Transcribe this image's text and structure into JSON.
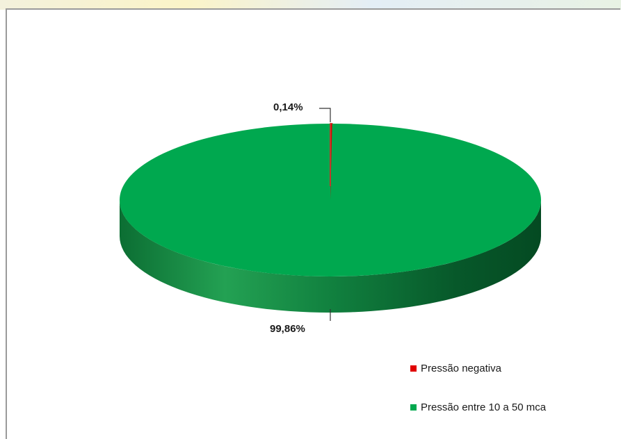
{
  "chart_data": {
    "type": "pie",
    "slices": [
      {
        "label": "Pressão negativa",
        "value": 0.14,
        "value_label": "0,14%",
        "color": "#e00000"
      },
      {
        "label": "Pressão entre 10 a 50 mca",
        "value": 99.86,
        "value_label": "99,86%",
        "color": "#00a84f"
      }
    ],
    "legend_placement": "bottom-right",
    "style": "3d"
  }
}
